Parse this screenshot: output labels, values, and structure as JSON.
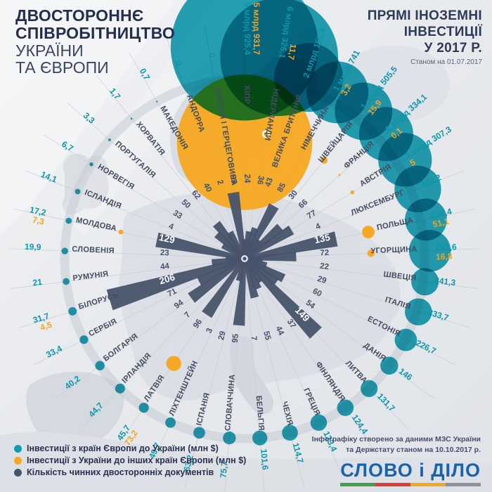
{
  "title": {
    "line1": "ДВОСТОРОННЄ",
    "line2": "СПІВРОБІТНИЦТВО",
    "line3": "УКРАЇНИ",
    "line4": "ТА ЄВРОПИ"
  },
  "header_right": {
    "line1": "ПРЯМІ ІНОЗЕМНІ",
    "line2": "ІНВЕСТИЦІЇ",
    "line3": "У 2017 Р.",
    "as_of": "Станом на 01.07.2017"
  },
  "legend": {
    "items": [
      {
        "key": "in",
        "label": "Інвестиції з країн Європи до України (млн $)"
      },
      {
        "key": "out",
        "label": "Інвестиції з України до інших країн Європи (млн $)"
      },
      {
        "key": "docs",
        "label": "Кількість чинних двосторонніх документів"
      }
    ]
  },
  "attribution": {
    "line1": "Інфографіку створено за даними МЗС України",
    "line2": "та Держстату станом на  10.10.2017 р."
  },
  "logo": {
    "text": "СЛОВО і ДІЛО",
    "underline_colors": [
      "#3da24a",
      "#e03c31",
      "#f2a81d",
      "#8b939e"
    ]
  },
  "colors": {
    "in": "#0e9db1",
    "out": "#f7a823",
    "docs": "#47536a",
    "in_text": "#0d96aa",
    "out_text": "#f6a41f",
    "country_text": "#414d5f",
    "ray": "#c8ccd4",
    "arc": "#c3c8d1"
  },
  "chart_data": {
    "type": "radial bubble + radial bar (polar infographic)",
    "units": {
      "investments": "млн $",
      "documents": "шт"
    },
    "order": "clockwise from 12 o'clock",
    "series": [
      {
        "name": "Інвестиції з країн Європи до України (млн $)",
        "field": "in"
      },
      {
        "name": "Інвестиції з України до інших країн Європи (млн $)",
        "field": "out"
      },
      {
        "name": "Кількість чинних двосторонніх документів",
        "field": "docs"
      }
    ],
    "countries": [
      {
        "name": "КІПР",
        "in": 9925.4,
        "in_label": "9 млрд 925,4",
        "out": 5931.7,
        "out_label": "5 млрд 931,7",
        "docs": 24
      },
      {
        "name": "НІДЕРЛАНДИ",
        "in": 6326.1,
        "in_label": "6 млрд 326,1",
        "out": 11.7,
        "out_label": "11,7",
        "docs": 36
      },
      {
        "name": "ВЕЛИКА БРИТАНІЯ",
        "in": 2155.8,
        "in_label": "2 млрд 155,8",
        "out": 0,
        "out_label": "",
        "docs": 43
      },
      {
        "name": "НІМЕЧЧИНА",
        "in": 1741,
        "in_label": "1 млрд 741",
        "out": 3.2,
        "out_label": "3,2",
        "docs": 85
      },
      {
        "name": "ШВЕЙЦАРІЯ",
        "in": 1505.5,
        "in_label": "1 млрд 505,5",
        "out": 15.9,
        "out_label": "15,9",
        "docs": 30
      },
      {
        "name": "ФРАНЦІЯ",
        "in": 1334.1,
        "in_label": "1 млрд 334,1",
        "out": 0.1,
        "out_label": "0,1",
        "docs": 66
      },
      {
        "name": "АВСТРІЯ",
        "in": 1307.3,
        "in_label": "1 млрд 307,3",
        "out": 5,
        "out_label": "5",
        "docs": 77
      },
      {
        "name": "ЛЮКСЕМБУРГ",
        "in": 988.2,
        "in_label": "988,2",
        "out": 0,
        "out_label": "",
        "docs": 4
      },
      {
        "name": "ПОЛЬЩА",
        "in": 800.4,
        "in_label": "800,4",
        "out": 51.1,
        "out_label": "51,1",
        "docs": 135
      },
      {
        "name": "УГОРЩИНА",
        "in": 791.6,
        "in_label": "791,6",
        "out": 16.8,
        "out_label": "16,8",
        "docs": 72
      },
      {
        "name": "ШВЕЦІЯ",
        "in": 341.3,
        "in_label": "341,3",
        "out": 0,
        "out_label": "",
        "docs": 22
      },
      {
        "name": "ІТАЛІЯ",
        "in": 333.7,
        "in_label": "333,7",
        "out": 0,
        "out_label": "",
        "docs": 29
      },
      {
        "name": "ЕСТОНІЯ",
        "in": 226.7,
        "in_label": "226,7",
        "out": 0,
        "out_label": "",
        "docs": 60
      },
      {
        "name": "ДАНІЯ",
        "in": 146,
        "in_label": "146",
        "out": 0,
        "out_label": "",
        "docs": 54
      },
      {
        "name": "ЛИТВА",
        "in": 131.7,
        "in_label": "131,7",
        "out": 0,
        "out_label": "",
        "docs": 149
      },
      {
        "name": "ФІНЛЯНДІЯ",
        "in": 124.4,
        "in_label": "124,4",
        "out": 0,
        "out_label": "",
        "docs": 37
      },
      {
        "name": "ГРЕЦІЯ",
        "in": 123.4,
        "in_label": "123,4",
        "out": 0,
        "out_label": "",
        "docs": 44
      },
      {
        "name": "ЧЕХІЯ",
        "in": 114.7,
        "in_label": "114,7",
        "out": 0,
        "out_label": "",
        "docs": 55
      },
      {
        "name": "БЕЛЬГІЯ",
        "in": 101.6,
        "in_label": "101,6",
        "out": 0,
        "out_label": "",
        "docs": 7
      },
      {
        "name": "СЛОВАЧЧИНА",
        "in": 75.7,
        "in_label": "75,7",
        "out": 0,
        "out_label": "",
        "docs": 95
      },
      {
        "name": "ІСПАНІЯ",
        "in": 63.2,
        "in_label": "63,2",
        "out": 0,
        "out_label": "",
        "docs": 29
      },
      {
        "name": "ЛІХТЕНШТЕЙН",
        "in": 49.7,
        "in_label": "49,7",
        "out": 0,
        "out_label": "",
        "docs": 3
      },
      {
        "name": "ЛАТВІЯ",
        "in": 45.7,
        "in_label": "45,7",
        "out": 73.2,
        "out_label": "73,2",
        "docs": 96
      },
      {
        "name": "ІРЛАНДІЯ",
        "in": 44.7,
        "in_label": "44,7",
        "out": 0,
        "out_label": "",
        "docs": 7
      },
      {
        "name": "БОЛГАРІЯ",
        "in": 40.2,
        "in_label": "40,2",
        "out": 0,
        "out_label": "",
        "docs": 94
      },
      {
        "name": "СЕРБІЯ",
        "in": 33.4,
        "in_label": "33,4",
        "out": 0,
        "out_label": "",
        "docs": 71
      },
      {
        "name": "БІЛОРУСЬ",
        "in": 31.7,
        "in_label": "31,7",
        "out": 4.5,
        "out_label": "4,5",
        "docs": 206
      },
      {
        "name": "РУМУНІЯ",
        "in": 21,
        "in_label": "21",
        "out": 0,
        "out_label": "",
        "docs": 44
      },
      {
        "name": "СЛОВЕНІЯ",
        "in": 19.9,
        "in_label": "19,9",
        "out": 0,
        "out_label": "",
        "docs": 23
      },
      {
        "name": "МОЛДОВА",
        "in": 17.2,
        "in_label": "17,2",
        "out": 7.3,
        "out_label": "7,3",
        "docs": 129
      },
      {
        "name": "ІСЛАНДІЯ",
        "in": 14.1,
        "in_label": "14,1",
        "out": 0,
        "out_label": "",
        "docs": 4
      },
      {
        "name": "НОРВЕГІЯ",
        "in": 6.7,
        "in_label": "6,7",
        "out": 0,
        "out_label": "",
        "docs": 33
      },
      {
        "name": "ПОРТУГАЛІЯ",
        "in": 3.3,
        "in_label": "3,3",
        "out": 0,
        "out_label": "",
        "docs": 50
      },
      {
        "name": "ХОРВАТІЯ",
        "in": 1.7,
        "in_label": "1,7",
        "out": 0,
        "out_label": "",
        "docs": 62
      },
      {
        "name": "МАКЕДОНІЯ",
        "in": 0.7,
        "in_label": "0,7",
        "out": 0,
        "out_label": "",
        "docs": 40
      },
      {
        "name": "АНДОРРА",
        "in": 0,
        "in_label": "0",
        "out": 0,
        "out_label": "",
        "docs": 2
      },
      {
        "name": "БОСНІЯ І ГЕРЦЕГОВИНА",
        "in": 0,
        "in_label": "0",
        "out": 0,
        "out_label": "",
        "docs": 95
      }
    ]
  }
}
